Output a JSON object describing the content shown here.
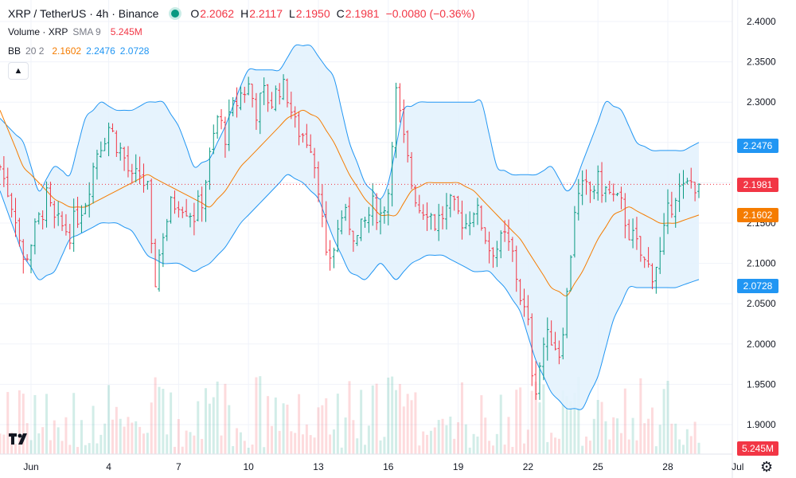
{
  "header": {
    "symbol": "XRP / TetherUS · 4h · Binance",
    "open_label": "O",
    "open": "2.2062",
    "high_label": "H",
    "high": "2.2117",
    "low_label": "L",
    "low": "2.1950",
    "close_label": "C",
    "close": "2.1981",
    "change": "−0.0080 (−0.36%)"
  },
  "volume_legend": {
    "label": "Volume · XRP",
    "sma": "SMA 9",
    "value": "5.245M"
  },
  "bb_legend": {
    "label": "BB",
    "params": "20 2",
    "basis": "2.1602",
    "upper": "2.2476",
    "lower": "2.0728"
  },
  "price_labels": {
    "upper": "2.2476",
    "last": "2.1981",
    "basis": "2.1602",
    "lower": "2.0728",
    "volume": "5.245M"
  },
  "colors": {
    "up": "#089981",
    "down": "#f23645",
    "basis": "#f57c00",
    "band": "#2196f3",
    "band_fill": "#e3f2fd"
  },
  "icons": {
    "collapse": "chevron-up-icon",
    "settings": "gear-icon",
    "logo": "tradingview-logo-icon"
  },
  "chart_data": {
    "type": "candlestick",
    "title": "XRP / TetherUS · 4h · Binance",
    "y_ticks": [
      "2.4000",
      "2.3500",
      "2.3000",
      "2.2500",
      "2.2000",
      "2.1500",
      "2.1000",
      "2.0500",
      "2.0000",
      "1.9500",
      "1.9000"
    ],
    "ylim": [
      1.88,
      2.42
    ],
    "x_ticks": [
      {
        "label": "Jun",
        "index": 8
      },
      {
        "label": "4",
        "index": 28
      },
      {
        "label": "7",
        "index": 46
      },
      {
        "label": "10",
        "index": 64
      },
      {
        "label": "13",
        "index": 82
      },
      {
        "label": "16",
        "index": 100
      },
      {
        "label": "19",
        "index": 118
      },
      {
        "label": "22",
        "index": 136
      },
      {
        "label": "25",
        "index": 154
      },
      {
        "label": "28",
        "index": 172
      },
      {
        "label": "Jul",
        "index": 190
      }
    ],
    "last_price": 2.1981,
    "bb_upper_nodes": [
      [
        0,
        2.28
      ],
      [
        6,
        2.25
      ],
      [
        10,
        2.19
      ],
      [
        14,
        2.22
      ],
      [
        18,
        2.21
      ],
      [
        22,
        2.28
      ],
      [
        26,
        2.3
      ],
      [
        30,
        2.29
      ],
      [
        34,
        2.29
      ],
      [
        38,
        2.3
      ],
      [
        42,
        2.3
      ],
      [
        46,
        2.27
      ],
      [
        50,
        2.22
      ],
      [
        54,
        2.23
      ],
      [
        58,
        2.27
      ],
      [
        62,
        2.32
      ],
      [
        64,
        2.34
      ],
      [
        68,
        2.34
      ],
      [
        72,
        2.34
      ],
      [
        76,
        2.37
      ],
      [
        80,
        2.37
      ],
      [
        86,
        2.33
      ],
      [
        90,
        2.25
      ],
      [
        94,
        2.2
      ],
      [
        98,
        2.18
      ],
      [
        100,
        2.2
      ],
      [
        104,
        2.29
      ],
      [
        108,
        2.3
      ],
      [
        112,
        2.3
      ],
      [
        116,
        2.3
      ],
      [
        120,
        2.3
      ],
      [
        124,
        2.3
      ],
      [
        126,
        2.26
      ],
      [
        128,
        2.22
      ],
      [
        132,
        2.21
      ],
      [
        138,
        2.21
      ],
      [
        142,
        2.22
      ],
      [
        146,
        2.19
      ],
      [
        148,
        2.2
      ],
      [
        152,
        2.25
      ],
      [
        156,
        2.3
      ],
      [
        160,
        2.29
      ],
      [
        164,
        2.25
      ],
      [
        168,
        2.24
      ],
      [
        172,
        2.24
      ],
      [
        176,
        2.24
      ],
      [
        180,
        2.25
      ]
    ],
    "bb_basis_nodes": [
      [
        0,
        2.29
      ],
      [
        6,
        2.22
      ],
      [
        10,
        2.2
      ],
      [
        14,
        2.18
      ],
      [
        18,
        2.17
      ],
      [
        22,
        2.17
      ],
      [
        26,
        2.18
      ],
      [
        30,
        2.19
      ],
      [
        34,
        2.2
      ],
      [
        38,
        2.21
      ],
      [
        42,
        2.2
      ],
      [
        46,
        2.19
      ],
      [
        50,
        2.18
      ],
      [
        54,
        2.17
      ],
      [
        58,
        2.19
      ],
      [
        62,
        2.22
      ],
      [
        66,
        2.24
      ],
      [
        70,
        2.26
      ],
      [
        74,
        2.28
      ],
      [
        78,
        2.29
      ],
      [
        82,
        2.28
      ],
      [
        86,
        2.25
      ],
      [
        90,
        2.21
      ],
      [
        94,
        2.18
      ],
      [
        98,
        2.16
      ],
      [
        102,
        2.16
      ],
      [
        106,
        2.19
      ],
      [
        110,
        2.2
      ],
      [
        114,
        2.2
      ],
      [
        118,
        2.2
      ],
      [
        122,
        2.19
      ],
      [
        126,
        2.17
      ],
      [
        130,
        2.15
      ],
      [
        134,
        2.13
      ],
      [
        138,
        2.1
      ],
      [
        142,
        2.07
      ],
      [
        146,
        2.06
      ],
      [
        150,
        2.09
      ],
      [
        154,
        2.13
      ],
      [
        158,
        2.16
      ],
      [
        162,
        2.17
      ],
      [
        166,
        2.16
      ],
      [
        170,
        2.15
      ],
      [
        174,
        2.15
      ],
      [
        180,
        2.16
      ]
    ],
    "bb_lower_nodes": [
      [
        0,
        2.19
      ],
      [
        6,
        2.11
      ],
      [
        10,
        2.08
      ],
      [
        14,
        2.09
      ],
      [
        18,
        2.13
      ],
      [
        22,
        2.14
      ],
      [
        26,
        2.15
      ],
      [
        30,
        2.15
      ],
      [
        34,
        2.14
      ],
      [
        38,
        2.11
      ],
      [
        42,
        2.1
      ],
      [
        46,
        2.1
      ],
      [
        50,
        2.09
      ],
      [
        54,
        2.1
      ],
      [
        58,
        2.12
      ],
      [
        62,
        2.15
      ],
      [
        66,
        2.17
      ],
      [
        70,
        2.19
      ],
      [
        74,
        2.21
      ],
      [
        78,
        2.2
      ],
      [
        82,
        2.18
      ],
      [
        86,
        2.13
      ],
      [
        90,
        2.09
      ],
      [
        94,
        2.08
      ],
      [
        98,
        2.1
      ],
      [
        102,
        2.08
      ],
      [
        106,
        2.1
      ],
      [
        110,
        2.11
      ],
      [
        114,
        2.11
      ],
      [
        118,
        2.1
      ],
      [
        122,
        2.09
      ],
      [
        126,
        2.09
      ],
      [
        130,
        2.07
      ],
      [
        134,
        2.04
      ],
      [
        138,
        1.98
      ],
      [
        142,
        1.94
      ],
      [
        146,
        1.92
      ],
      [
        150,
        1.92
      ],
      [
        154,
        1.96
      ],
      [
        158,
        2.03
      ],
      [
        162,
        2.07
      ],
      [
        166,
        2.07
      ],
      [
        170,
        2.07
      ],
      [
        174,
        2.07
      ],
      [
        180,
        2.08
      ]
    ],
    "price_path": [
      [
        0,
        2.22
      ],
      [
        4,
        2.16
      ],
      [
        6,
        2.1
      ],
      [
        9,
        2.14
      ],
      [
        12,
        2.18
      ],
      [
        14,
        2.15
      ],
      [
        18,
        2.14
      ],
      [
        20,
        2.16
      ],
      [
        22,
        2.18
      ],
      [
        25,
        2.24
      ],
      [
        28,
        2.27
      ],
      [
        30,
        2.25
      ],
      [
        32,
        2.23
      ],
      [
        34,
        2.2
      ],
      [
        36,
        2.21
      ],
      [
        38,
        2.19
      ],
      [
        39,
        2.11
      ],
      [
        40,
        2.08
      ],
      [
        42,
        2.14
      ],
      [
        44,
        2.17
      ],
      [
        46,
        2.18
      ],
      [
        48,
        2.17
      ],
      [
        50,
        2.16
      ],
      [
        52,
        2.18
      ],
      [
        54,
        2.23
      ],
      [
        56,
        2.28
      ],
      [
        58,
        2.26
      ],
      [
        60,
        2.29
      ],
      [
        62,
        2.31
      ],
      [
        64,
        2.32
      ],
      [
        66,
        2.29
      ],
      [
        68,
        2.31
      ],
      [
        70,
        2.3
      ],
      [
        72,
        2.32
      ],
      [
        74,
        2.31
      ],
      [
        76,
        2.27
      ],
      [
        78,
        2.26
      ],
      [
        80,
        2.25
      ],
      [
        82,
        2.2
      ],
      [
        84,
        2.1
      ],
      [
        86,
        2.12
      ],
      [
        88,
        2.16
      ],
      [
        90,
        2.15
      ],
      [
        92,
        2.13
      ],
      [
        94,
        2.15
      ],
      [
        96,
        2.17
      ],
      [
        98,
        2.16
      ],
      [
        100,
        2.19
      ],
      [
        101,
        2.26
      ],
      [
        102,
        2.31
      ],
      [
        104,
        2.25
      ],
      [
        106,
        2.2
      ],
      [
        108,
        2.17
      ],
      [
        110,
        2.17
      ],
      [
        112,
        2.15
      ],
      [
        114,
        2.16
      ],
      [
        116,
        2.17
      ],
      [
        118,
        2.16
      ],
      [
        120,
        2.15
      ],
      [
        122,
        2.17
      ],
      [
        124,
        2.15
      ],
      [
        126,
        2.12
      ],
      [
        128,
        2.12
      ],
      [
        130,
        2.13
      ],
      [
        132,
        2.11
      ],
      [
        134,
        2.06
      ],
      [
        136,
        2.02
      ],
      [
        137,
        1.97
      ],
      [
        138,
        1.95
      ],
      [
        140,
        2.0
      ],
      [
        142,
        2.01
      ],
      [
        144,
        1.99
      ],
      [
        146,
        2.06
      ],
      [
        148,
        2.17
      ],
      [
        150,
        2.19
      ],
      [
        152,
        2.19
      ],
      [
        154,
        2.2
      ],
      [
        156,
        2.19
      ],
      [
        158,
        2.18
      ],
      [
        160,
        2.17
      ],
      [
        162,
        2.14
      ],
      [
        164,
        2.12
      ],
      [
        166,
        2.1
      ],
      [
        168,
        2.09
      ],
      [
        170,
        2.11
      ],
      [
        172,
        2.16
      ],
      [
        174,
        2.19
      ],
      [
        176,
        2.19
      ],
      [
        178,
        2.2
      ],
      [
        180,
        2.2
      ]
    ]
  }
}
